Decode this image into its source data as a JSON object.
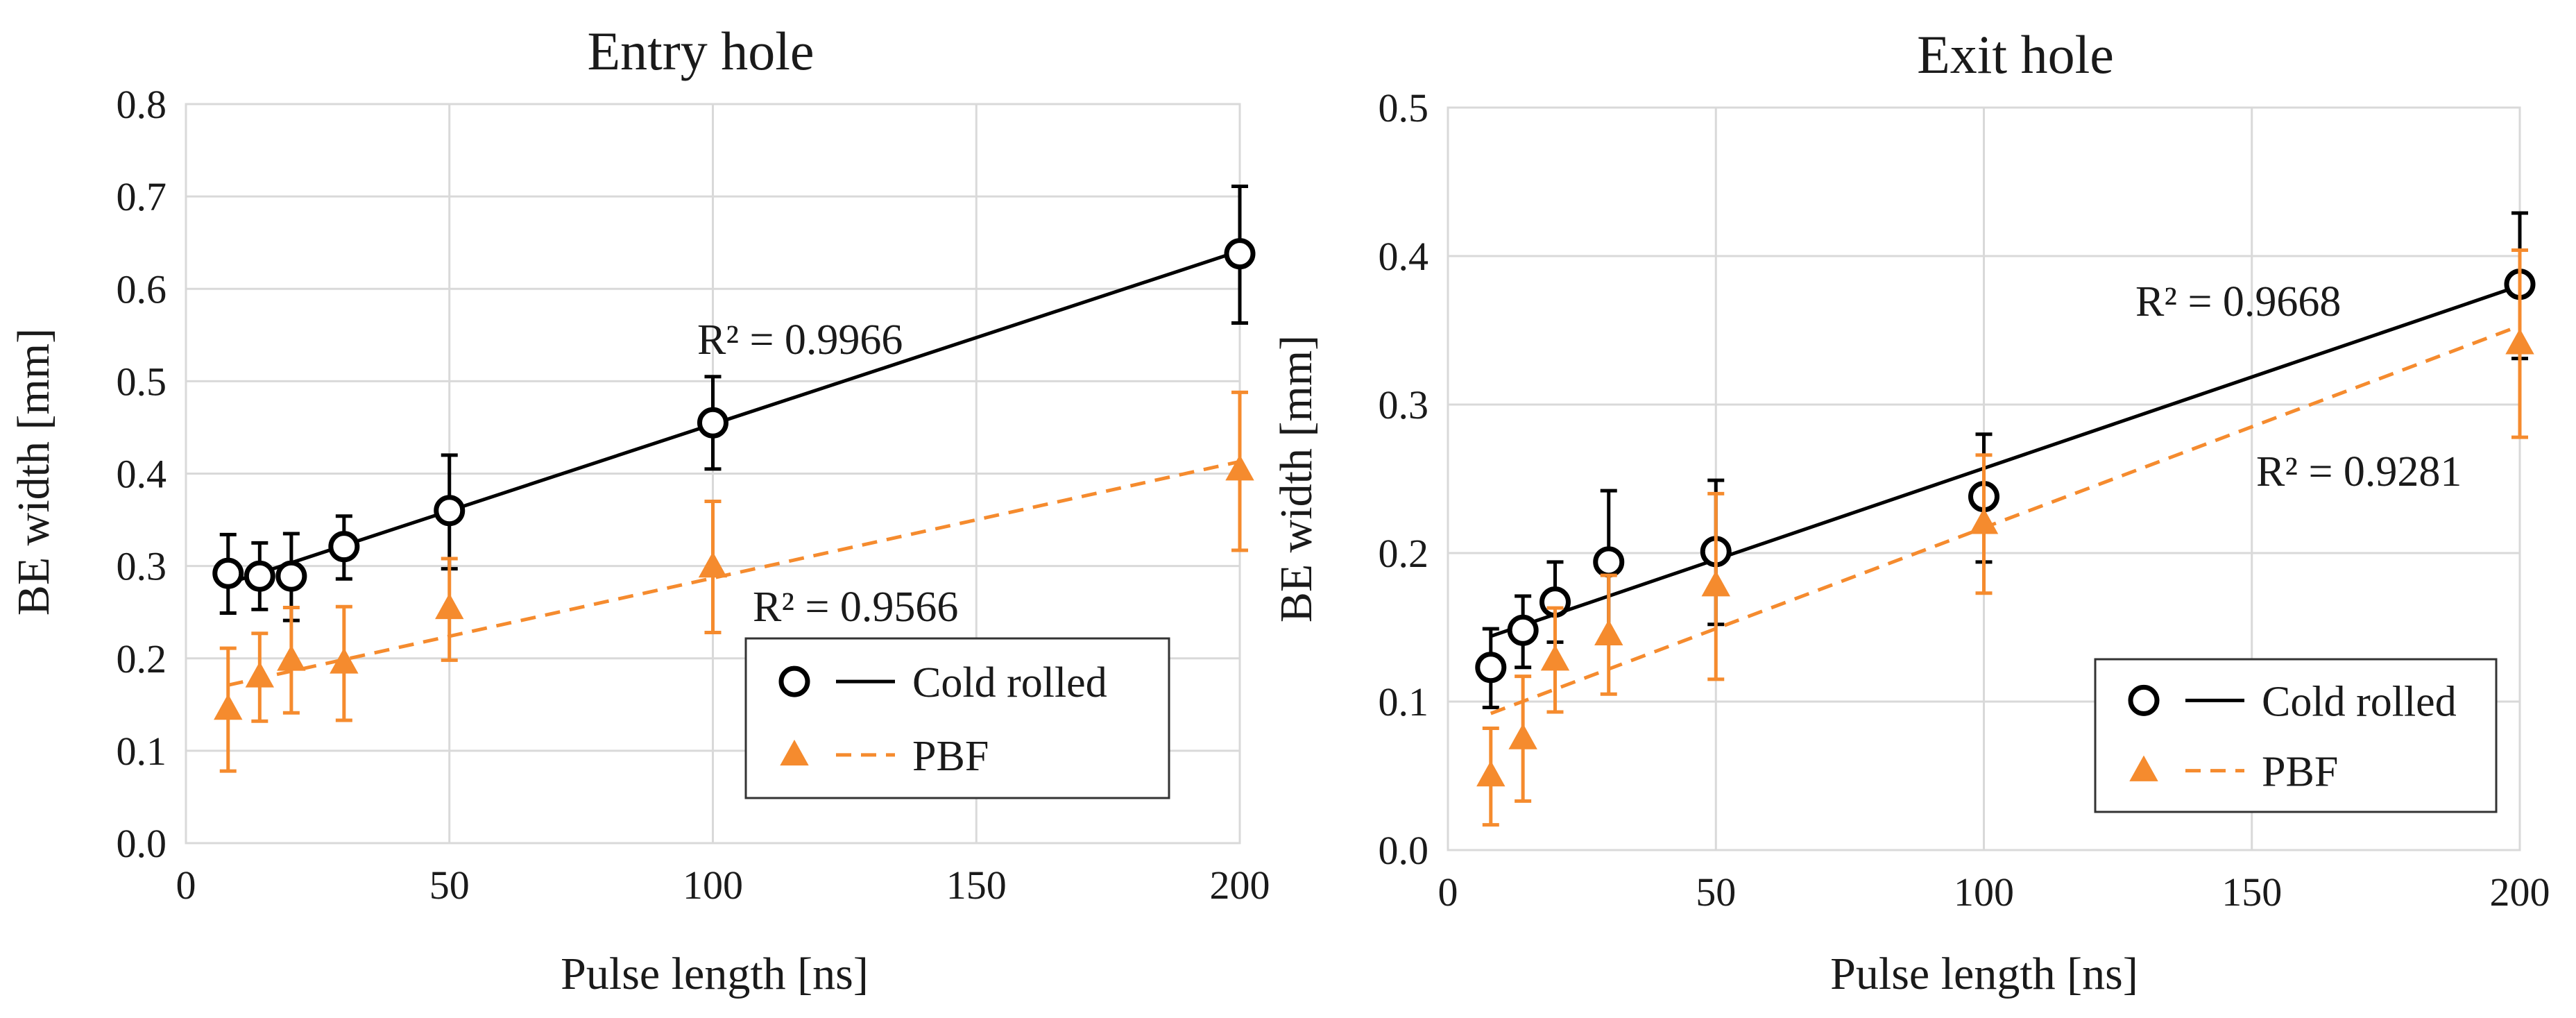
{
  "colors": {
    "cold_rolled": "#000000",
    "pbf": "#f58b2e",
    "grid": "#d9d9d9",
    "text": "#1a1a1a"
  },
  "chart_data": [
    {
      "type": "scatter",
      "title": "Entry hole",
      "xlabel": "Pulse length [ns]",
      "ylabel": "BE width [mm]",
      "xlim": [
        0,
        200
      ],
      "ylim": [
        0,
        0.8
      ],
      "xticks": [
        "0",
        "50",
        "100",
        "150",
        "200"
      ],
      "yticks": [
        "0.0",
        "0.1",
        "0.2",
        "0.3",
        "0.4",
        "0.5",
        "0.6",
        "0.7",
        "0.8"
      ],
      "legend": {
        "placement": "bottom-right",
        "entries": [
          "Cold rolled",
          "PBF"
        ]
      },
      "series": [
        {
          "name": "Cold rolled",
          "marker": "circle",
          "line": "solid",
          "x": [
            8,
            14,
            20,
            30,
            50,
            100,
            200
          ],
          "y": [
            0.292,
            0.289,
            0.289,
            0.321,
            0.36,
            0.455,
            0.638
          ],
          "err_low": [
            0.043,
            0.036,
            0.048,
            0.035,
            0.063,
            0.05,
            0.075
          ],
          "err_high": [
            0.042,
            0.036,
            0.046,
            0.033,
            0.06,
            0.05,
            0.073
          ],
          "trend": {
            "x": [
              8,
              200
            ],
            "y": [
              0.281,
              0.641
            ]
          },
          "r2_label": "R² = 0.9966"
        },
        {
          "name": "PBF",
          "marker": "triangle",
          "line": "dashed",
          "x": [
            8,
            14,
            20,
            30,
            50,
            100,
            200
          ],
          "y": [
            0.145,
            0.18,
            0.198,
            0.195,
            0.254,
            0.299,
            0.404
          ],
          "err_low": [
            0.067,
            0.048,
            0.057,
            0.062,
            0.056,
            0.071,
            0.087
          ],
          "err_high": [
            0.066,
            0.047,
            0.057,
            0.061,
            0.054,
            0.071,
            0.084
          ],
          "trend": {
            "x": [
              8,
              200
            ],
            "y": [
              0.171,
              0.413
            ]
          },
          "r2_label": "R² = 0.9566"
        }
      ]
    },
    {
      "type": "scatter",
      "title": "Exit hole",
      "xlabel": "Pulse length [ns]",
      "ylabel": "BE width [mm]",
      "xlim": [
        0,
        200
      ],
      "ylim": [
        0,
        0.5
      ],
      "xticks": [
        "0",
        "50",
        "100",
        "150",
        "200"
      ],
      "yticks": [
        "0.0",
        "0.1",
        "0.2",
        "0.3",
        "0.4",
        "0.5"
      ],
      "legend": {
        "placement": "bottom-right",
        "entries": [
          "Cold rolled",
          "PBF"
        ]
      },
      "series": [
        {
          "name": "Cold rolled",
          "marker": "circle",
          "line": "solid",
          "x": [
            8,
            14,
            20,
            30,
            50,
            100,
            200
          ],
          "y": [
            0.123,
            0.148,
            0.167,
            0.194,
            0.201,
            0.238,
            0.381
          ],
          "err_low": [
            0.027,
            0.025,
            0.027,
            0.05,
            0.049,
            0.044,
            0.05
          ],
          "err_high": [
            0.026,
            0.023,
            0.027,
            0.048,
            0.048,
            0.042,
            0.048
          ],
          "trend": {
            "x": [
              8,
              200
            ],
            "y": [
              0.144,
              0.38
            ]
          },
          "r2_label": "R² = 0.9668"
        },
        {
          "name": "PBF",
          "marker": "triangle",
          "line": "dashed",
          "x": [
            8,
            14,
            20,
            30,
            50,
            100,
            200
          ],
          "y": [
            0.05,
            0.075,
            0.128,
            0.145,
            0.178,
            0.22,
            0.341
          ],
          "err_low": [
            0.033,
            0.042,
            0.035,
            0.04,
            0.063,
            0.047,
            0.063
          ],
          "err_high": [
            0.032,
            0.042,
            0.035,
            0.04,
            0.062,
            0.046,
            0.063
          ],
          "trend": {
            "x": [
              8,
              200
            ],
            "y": [
              0.092,
              0.353
            ]
          },
          "r2_label": "R² = 0.9281"
        }
      ]
    }
  ]
}
